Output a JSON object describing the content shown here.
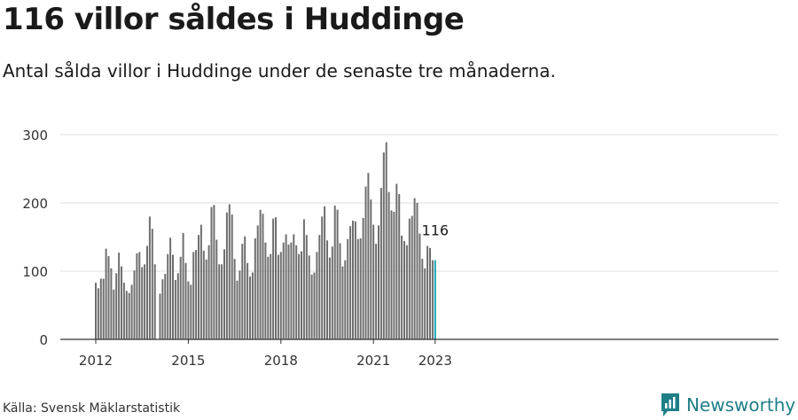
{
  "header": {
    "title": "116 villor såldes i Huddinge",
    "subtitle": "Antal sålda villor i Huddinge under de senaste tre månaderna."
  },
  "footer": {
    "source": "Källa: Svensk Mäklarstatistik",
    "brand": "Newsworthy"
  },
  "colors": {
    "bar": "#6f6f6f",
    "highlight": "#1aa3b2",
    "grid": "#dddddd",
    "axis": "#333333",
    "brand": "#1f7f87"
  },
  "chart_data": {
    "type": "bar",
    "title": "116 villor såldes i Huddinge",
    "subtitle": "Antal sålda villor i Huddinge under de senaste tre månaderna.",
    "xlabel": "",
    "ylabel": "",
    "ylim": [
      0,
      300
    ],
    "yticks": [
      0,
      100,
      200,
      300
    ],
    "xticks": [
      {
        "label": "2012",
        "index": 0
      },
      {
        "label": "2015",
        "index": 36
      },
      {
        "label": "2018",
        "index": 72
      },
      {
        "label": "2021",
        "index": 108
      },
      {
        "label": "2023",
        "index": 132
      }
    ],
    "grid": true,
    "start": "2012-01",
    "frequency": "monthly",
    "last_value_label": "116",
    "values": [
      83,
      75,
      89,
      89,
      133,
      122,
      104,
      73,
      97,
      127,
      107,
      83,
      71,
      68,
      80,
      101,
      126,
      128,
      106,
      110,
      137,
      180,
      162,
      110,
      0,
      67,
      88,
      96,
      125,
      149,
      124,
      87,
      97,
      121,
      156,
      112,
      85,
      80,
      128,
      131,
      153,
      168,
      130,
      117,
      138,
      194,
      197,
      146,
      110,
      110,
      132,
      186,
      198,
      183,
      118,
      86,
      101,
      140,
      151,
      112,
      92,
      98,
      148,
      167,
      190,
      184,
      142,
      121,
      125,
      177,
      179,
      124,
      128,
      142,
      154,
      139,
      142,
      154,
      138,
      125,
      129,
      176,
      153,
      123,
      95,
      98,
      128,
      153,
      180,
      195,
      145,
      120,
      136,
      196,
      190,
      141,
      107,
      116,
      147,
      166,
      174,
      173,
      147,
      148,
      178,
      224,
      244,
      205,
      168,
      140,
      167,
      222,
      274,
      289,
      216,
      189,
      187,
      228,
      213,
      152,
      144,
      138,
      177,
      181,
      207,
      200,
      155,
      118,
      104,
      137,
      134,
      116,
      116
    ]
  }
}
